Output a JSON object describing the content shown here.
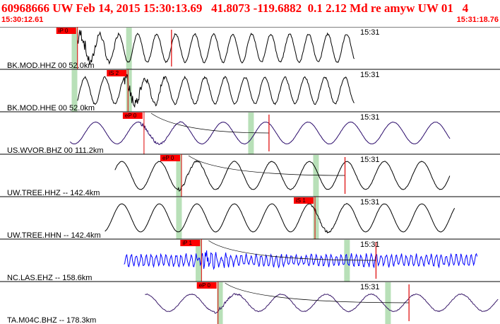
{
  "header": {
    "title": "60968666 UW Feb 14, 2015 15:30:13.69   41.8073 -119.6882  0.1 2.12 Md re amyw UW 01   4",
    "start_time": "15:30:12.61",
    "end_time": "15:31:18.76"
  },
  "colors": {
    "header_text": "#ff0000",
    "pick_flag": "#ff0000",
    "window_band": "#b8e0b8",
    "pick_line": "#dd0000"
  },
  "traces": [
    {
      "label": "BK.MOD.HHZ 00 52.0km",
      "time_mark": "15:31",
      "pick": "iP 0",
      "color": "#000000",
      "onset": 0.155,
      "end": 0.71,
      "amp": 0.9,
      "period": 0.038,
      "noise": 0.25,
      "pick_pos": 0.155,
      "window_pos": 0.149,
      "window2_pos": 0.258,
      "has_curve": false,
      "tick_pos": 0.343
    },
    {
      "label": "BK.MOD.HHE 00 52.0km",
      "time_mark": "15:31",
      "pick": "iS 2",
      "color": "#000000",
      "onset": 0.155,
      "end": 0.71,
      "amp": 0.85,
      "period": 0.04,
      "noise": 0.25,
      "pick_pos": 0.256,
      "window_pos": 0.149,
      "window2_pos": 0.258,
      "has_curve": false,
      "tick_pos": 0
    },
    {
      "label": "US.WVOR.BHZ 00 111.2km",
      "time_mark": "15:31",
      "pick": "eP 0",
      "color": "#2a0a6a",
      "onset": 0.14,
      "end": 0.9,
      "amp": 0.7,
      "period": 0.085,
      "noise": 0.05,
      "pick_pos": 0.288,
      "window_pos": 0.502,
      "window2_pos": 0,
      "has_curve": true,
      "tick_pos": 0.538
    },
    {
      "label": "UW.TREE.HHZ -- 142.4km",
      "time_mark": "15:31",
      "pick": "eP 0",
      "color": "#000000",
      "onset": 0.23,
      "end": 0.9,
      "amp": 0.9,
      "period": 0.075,
      "noise": 0.08,
      "pick_pos": 0.363,
      "window_pos": 0.358,
      "window2_pos": 0.632,
      "has_curve": true,
      "tick_pos": 0.69
    },
    {
      "label": "UW.TREE.HHN -- 142.4km",
      "time_mark": "15:31",
      "pick": "iS 1",
      "color": "#000000",
      "onset": 0.21,
      "end": 0.91,
      "amp": 0.9,
      "period": 0.075,
      "noise": 0.04,
      "pick_pos": 0.63,
      "window_pos": 0.358,
      "window2_pos": 0.632,
      "has_curve": false,
      "tick_pos": 0
    },
    {
      "label": "NC.LAS.EHZ -- 158.6km",
      "time_mark": "15:31",
      "pick": "iP 1",
      "color": "#0000ff",
      "onset": 0.248,
      "end": 0.955,
      "amp": 0.35,
      "period": 0.01,
      "noise": 0.5,
      "pick_pos": 0.403,
      "window_pos": 0.397,
      "window2_pos": 0.694,
      "has_curve": true,
      "tick_pos": 0.752
    },
    {
      "label": "TA.M04C.BHZ -- 178.3km",
      "time_mark": "15:31",
      "pick": "eP 0",
      "color": "#3a1a6a",
      "onset": 0.29,
      "end": 1.0,
      "amp": 0.55,
      "period": 0.09,
      "noise": 0.12,
      "pick_pos": 0.436,
      "window_pos": 0.44,
      "window2_pos": 0.776,
      "has_curve": true,
      "tick_pos": 0.818
    }
  ]
}
